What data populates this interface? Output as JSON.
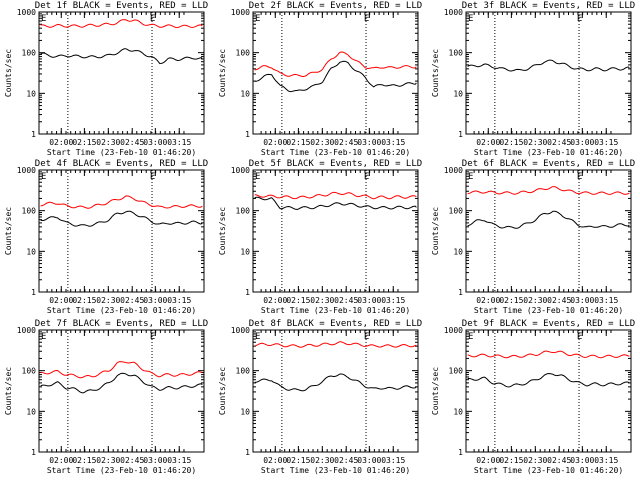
{
  "figure": {
    "background": "#ffffff",
    "axis_color": "#000000",
    "events_color": "#000000",
    "lld_color": "#ff0000",
    "marker_glyph": "E"
  },
  "chart_data": [
    {
      "type": "line",
      "title": "Det 1f BLACK = Events, RED = LLD",
      "xlabel": "Start Time (23-Feb-10 01:46:20)",
      "ylabel": "Counts/sec",
      "yscale": "log",
      "ylim": [
        1,
        1000
      ],
      "x_tick_labels": [
        "02:00",
        "02:15",
        "02:30",
        "02:45",
        "03:00",
        "03:15"
      ],
      "y_tick_labels": [
        "1",
        "10",
        "100",
        "1000"
      ],
      "event_markers": [
        "E",
        "E"
      ],
      "series": [
        {
          "name": "Events",
          "color": "#000000",
          "y": [
            95,
            85,
            80,
            85,
            82,
            80,
            78,
            80,
            85,
            100,
            120,
            115,
            95,
            80,
            55,
            70,
            68,
            72,
            75,
            70
          ]
        },
        {
          "name": "LLD",
          "color": "#ff0000",
          "y": [
            450,
            450,
            460,
            455,
            450,
            455,
            470,
            480,
            500,
            540,
            650,
            620,
            520,
            470,
            450,
            450,
            445,
            440,
            450,
            450
          ]
        }
      ]
    },
    {
      "type": "line",
      "title": "Det 2f BLACK = Events, RED = LLD",
      "xlabel": "Start Time (23-Feb-10 01:46:20)",
      "ylabel": "Counts/sec",
      "yscale": "log",
      "ylim": [
        1,
        1000
      ],
      "x_tick_labels": [
        "02:00",
        "02:15",
        "02:30",
        "02:45",
        "03:00",
        "03:15"
      ],
      "y_tick_labels": [
        "1",
        "10",
        "100",
        "1000"
      ],
      "event_markers": [
        "E",
        "E"
      ],
      "series": [
        {
          "name": "Events",
          "color": "#000000",
          "y": [
            20,
            25,
            30,
            15,
            12,
            11,
            13,
            15,
            20,
            40,
            60,
            55,
            35,
            25,
            14,
            17,
            15,
            16,
            17,
            18
          ]
        },
        {
          "name": "LLD",
          "color": "#ff0000",
          "y": [
            40,
            45,
            45,
            30,
            28,
            27,
            28,
            32,
            40,
            70,
            100,
            90,
            60,
            45,
            40,
            45,
            42,
            45,
            45,
            45
          ]
        }
      ]
    },
    {
      "type": "line",
      "title": "Det 3f BLACK = Events, RED = LLD",
      "xlabel": "Start Time (23-Feb-10 01:46:20)",
      "ylabel": "Counts/sec",
      "yscale": "log",
      "ylim": [
        1,
        1000
      ],
      "x_tick_labels": [
        "02:00",
        "02:15",
        "02:30",
        "02:45",
        "03:00",
        "03:15"
      ],
      "y_tick_labels": [
        "1",
        "10",
        "100",
        "1000"
      ],
      "event_markers": [
        "E",
        "E"
      ],
      "series": [
        {
          "name": "Events",
          "color": "#000000",
          "y": [
            45,
            48,
            50,
            45,
            40,
            38,
            36,
            40,
            48,
            60,
            62,
            55,
            45,
            40,
            38,
            40,
            38,
            40,
            40,
            42
          ]
        }
      ]
    },
    {
      "type": "line",
      "title": "Det 4f BLACK = Events, RED = LLD",
      "xlabel": "Start Time (23-Feb-10 01:46:20)",
      "ylabel": "Counts/sec",
      "yscale": "log",
      "ylim": [
        1,
        1000
      ],
      "x_tick_labels": [
        "02:00",
        "02:15",
        "02:30",
        "02:45",
        "03:00",
        "03:15"
      ],
      "y_tick_labels": [
        "1",
        "10",
        "100",
        "1000"
      ],
      "event_markers": [
        "E",
        "E"
      ],
      "series": [
        {
          "name": "Events",
          "color": "#000000",
          "y": [
            60,
            65,
            70,
            50,
            45,
            42,
            45,
            50,
            60,
            85,
            95,
            85,
            70,
            55,
            45,
            50,
            48,
            50,
            52,
            50
          ]
        },
        {
          "name": "LLD",
          "color": "#ff0000",
          "y": [
            140,
            150,
            155,
            130,
            125,
            120,
            125,
            140,
            160,
            190,
            220,
            200,
            160,
            140,
            120,
            125,
            125,
            130,
            130,
            130
          ]
        }
      ]
    },
    {
      "type": "line",
      "title": "Det 5f BLACK = Events, RED = LLD",
      "xlabel": "Start Time (23-Feb-10 01:46:20)",
      "ylabel": "Counts/sec",
      "yscale": "log",
      "ylim": [
        1,
        1000
      ],
      "x_tick_labels": [
        "02:00",
        "02:15",
        "02:30",
        "02:45",
        "03:00",
        "03:15"
      ],
      "y_tick_labels": [
        "1",
        "10",
        "100",
        "1000"
      ],
      "event_markers": [
        "E",
        "E"
      ],
      "series": [
        {
          "name": "Events",
          "color": "#000000",
          "y": [
            200,
            200,
            195,
            120,
            118,
            115,
            118,
            120,
            128,
            140,
            150,
            145,
            135,
            125,
            120,
            118,
            118,
            120,
            120,
            120
          ]
        },
        {
          "name": "LLD",
          "color": "#ff0000",
          "y": [
            230,
            230,
            225,
            220,
            215,
            210,
            215,
            225,
            240,
            260,
            270,
            260,
            240,
            225,
            210,
            215,
            210,
            220,
            215,
            220
          ]
        }
      ]
    },
    {
      "type": "line",
      "title": "Det 6f BLACK = Events, RED = LLD",
      "xlabel": "Start Time (23-Feb-10 01:46:20)",
      "ylabel": "Counts/sec",
      "yscale": "log",
      "ylim": [
        1,
        1000
      ],
      "x_tick_labels": [
        "02:00",
        "02:15",
        "02:30",
        "02:45",
        "03:00",
        "03:15"
      ],
      "y_tick_labels": [
        "1",
        "10",
        "100",
        "1000"
      ],
      "event_markers": [
        "E",
        "E"
      ],
      "series": [
        {
          "name": "Events",
          "color": "#000000",
          "y": [
            45,
            55,
            60,
            45,
            40,
            38,
            40,
            48,
            60,
            85,
            95,
            80,
            60,
            45,
            38,
            42,
            40,
            42,
            45,
            45
          ]
        },
        {
          "name": "LLD",
          "color": "#ff0000",
          "y": [
            280,
            285,
            290,
            280,
            275,
            270,
            275,
            290,
            310,
            350,
            370,
            340,
            300,
            280,
            270,
            270,
            268,
            270,
            270,
            270
          ]
        }
      ]
    },
    {
      "type": "line",
      "title": "Det 7f BLACK = Events, RED = LLD",
      "xlabel": "Start Time (23-Feb-10 01:46:20)",
      "ylabel": "Counts/sec",
      "yscale": "log",
      "ylim": [
        1,
        1000
      ],
      "x_tick_labels": [
        "02:00",
        "02:15",
        "02:30",
        "02:45",
        "03:00",
        "03:15"
      ],
      "y_tick_labels": [
        "1",
        "10",
        "100",
        "1000"
      ],
      "event_markers": [
        "E",
        "E"
      ],
      "series": [
        {
          "name": "Events",
          "color": "#000000",
          "y": [
            40,
            45,
            50,
            38,
            35,
            30,
            32,
            38,
            50,
            75,
            85,
            75,
            55,
            40,
            35,
            38,
            38,
            40,
            42,
            45
          ]
        },
        {
          "name": "LLD",
          "color": "#ff0000",
          "y": [
            85,
            90,
            95,
            80,
            75,
            70,
            72,
            85,
            100,
            150,
            170,
            150,
            110,
            85,
            75,
            80,
            78,
            80,
            85,
            90
          ]
        }
      ]
    },
    {
      "type": "line",
      "title": "Det 8f BLACK = Events, RED = LLD",
      "xlabel": "Start Time (23-Feb-10 01:46:20)",
      "ylabel": "Counts/sec",
      "yscale": "log",
      "ylim": [
        1,
        1000
      ],
      "x_tick_labels": [
        "02:00",
        "02:15",
        "02:30",
        "02:45",
        "03:00",
        "03:15"
      ],
      "y_tick_labels": [
        "1",
        "10",
        "100",
        "1000"
      ],
      "event_markers": [
        "E",
        "E"
      ],
      "series": [
        {
          "name": "Events",
          "color": "#000000",
          "y": [
            55,
            58,
            60,
            40,
            35,
            33,
            35,
            42,
            55,
            75,
            80,
            70,
            55,
            42,
            35,
            38,
            36,
            38,
            40,
            40
          ]
        },
        {
          "name": "LLD",
          "color": "#ff0000",
          "y": [
            430,
            440,
            445,
            420,
            410,
            400,
            410,
            420,
            440,
            460,
            480,
            470,
            440,
            420,
            400,
            410,
            400,
            410,
            410,
            420
          ]
        }
      ]
    },
    {
      "type": "line",
      "title": "Det 9f BLACK = Events, RED = LLD",
      "xlabel": "Start Time (23-Feb-10 01:46:20)",
      "ylabel": "Counts/sec",
      "yscale": "log",
      "ylim": [
        1,
        1000
      ],
      "x_tick_labels": [
        "02:00",
        "02:15",
        "02:30",
        "02:45",
        "03:00",
        "03:15"
      ],
      "y_tick_labels": [
        "1",
        "10",
        "100",
        "1000"
      ],
      "event_markers": [
        "E",
        "E"
      ],
      "series": [
        {
          "name": "Events",
          "color": "#000000",
          "y": [
            60,
            62,
            65,
            50,
            45,
            42,
            45,
            50,
            60,
            75,
            85,
            75,
            60,
            50,
            45,
            47,
            45,
            47,
            48,
            50
          ]
        },
        {
          "name": "LLD",
          "color": "#ff0000",
          "y": [
            230,
            235,
            240,
            230,
            225,
            220,
            225,
            235,
            250,
            280,
            300,
            280,
            250,
            235,
            225,
            225,
            222,
            225,
            228,
            230
          ]
        }
      ]
    }
  ]
}
